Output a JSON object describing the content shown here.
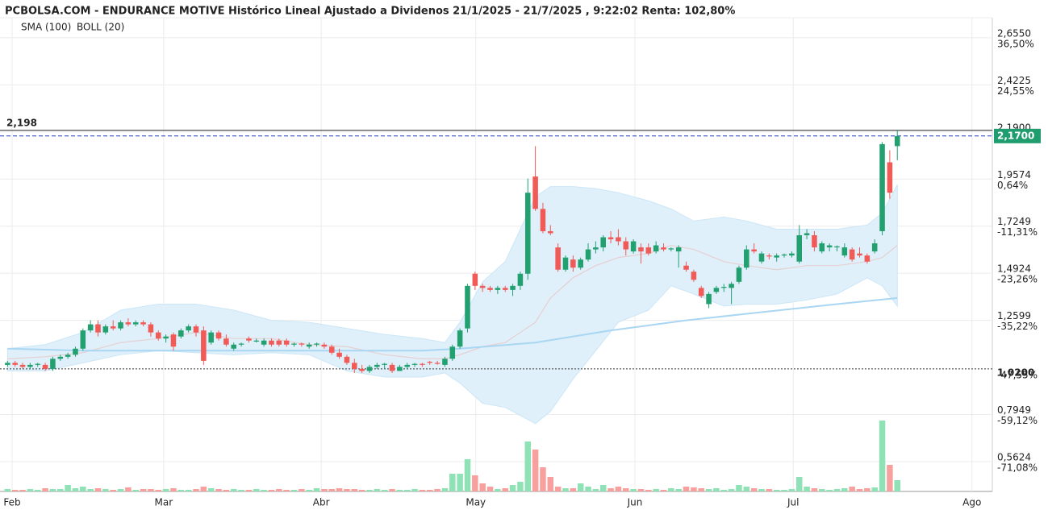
{
  "chart_data": {
    "type": "candlestick",
    "title": "PCBOLSA.COM - ENDURANCE MOTIVE Histórico Lineal Ajustado a Dividenos 21/1/2025 - 21/7/2025 , 9:22:02 Renta: 102,80%",
    "up_color": "#22a06f",
    "down_color": "#f05a57",
    "volume_up_color": "#8ee2b5",
    "volume_down_color": "#f7a09d",
    "candles": [
      [
        1.04,
        1.06,
        1.03,
        1.05
      ],
      [
        1.05,
        1.06,
        1.03,
        1.04
      ],
      [
        1.04,
        1.05,
        1.02,
        1.03
      ],
      [
        1.03,
        1.05,
        1.02,
        1.04
      ],
      [
        1.04,
        1.05,
        1.03,
        1.045
      ],
      [
        1.04,
        1.05,
        1.01,
        1.02
      ],
      [
        1.02,
        1.08,
        1.01,
        1.07
      ],
      [
        1.07,
        1.09,
        1.06,
        1.08
      ],
      [
        1.08,
        1.1,
        1.07,
        1.09
      ],
      [
        1.09,
        1.13,
        1.08,
        1.12
      ],
      [
        1.12,
        1.22,
        1.11,
        1.21
      ],
      [
        1.21,
        1.26,
        1.2,
        1.24
      ],
      [
        1.24,
        1.26,
        1.18,
        1.2
      ],
      [
        1.2,
        1.24,
        1.19,
        1.23
      ],
      [
        1.23,
        1.26,
        1.21,
        1.22
      ],
      [
        1.22,
        1.26,
        1.21,
        1.25
      ],
      [
        1.25,
        1.27,
        1.23,
        1.24
      ],
      [
        1.24,
        1.26,
        1.23,
        1.25
      ],
      [
        1.25,
        1.26,
        1.23,
        1.24
      ],
      [
        1.24,
        1.25,
        1.18,
        1.2
      ],
      [
        1.2,
        1.21,
        1.16,
        1.17
      ],
      [
        1.17,
        1.19,
        1.15,
        1.18
      ],
      [
        1.19,
        1.2,
        1.11,
        1.13
      ],
      [
        1.18,
        1.22,
        1.17,
        1.21
      ],
      [
        1.21,
        1.24,
        1.2,
        1.23
      ],
      [
        1.23,
        1.24,
        1.18,
        1.2
      ],
      [
        1.21,
        1.23,
        1.04,
        1.06
      ],
      [
        1.15,
        1.21,
        1.14,
        1.2
      ],
      [
        1.2,
        1.21,
        1.16,
        1.17
      ],
      [
        1.17,
        1.19,
        1.13,
        1.14
      ],
      [
        1.12,
        1.15,
        1.11,
        1.14
      ],
      [
        1.14,
        1.15,
        1.13,
        1.145
      ],
      [
        1.17,
        1.18,
        1.15,
        1.16
      ],
      [
        1.155,
        1.17,
        1.15,
        1.16
      ],
      [
        1.14,
        1.17,
        1.13,
        1.16
      ],
      [
        1.16,
        1.17,
        1.13,
        1.14
      ],
      [
        1.16,
        1.17,
        1.13,
        1.14
      ],
      [
        1.16,
        1.17,
        1.13,
        1.14
      ],
      [
        1.14,
        1.15,
        1.13,
        1.145
      ],
      [
        1.145,
        1.15,
        1.13,
        1.14
      ],
      [
        1.13,
        1.15,
        1.12,
        1.14
      ],
      [
        1.14,
        1.15,
        1.13,
        1.145
      ],
      [
        1.14,
        1.15,
        1.12,
        1.13
      ],
      [
        1.13,
        1.14,
        1.09,
        1.1
      ],
      [
        1.1,
        1.12,
        1.07,
        1.08
      ],
      [
        1.08,
        1.09,
        1.04,
        1.05
      ],
      [
        1.05,
        1.07,
        1.0,
        1.02
      ],
      [
        1.02,
        1.04,
        1.0,
        1.01
      ],
      [
        1.01,
        1.04,
        1.0,
        1.03
      ],
      [
        1.03,
        1.05,
        1.02,
        1.04
      ],
      [
        1.04,
        1.05,
        1.02,
        1.045
      ],
      [
        1.04,
        1.05,
        1.0,
        1.01
      ],
      [
        1.01,
        1.04,
        1.01,
        1.03
      ],
      [
        1.03,
        1.05,
        1.02,
        1.04
      ],
      [
        1.04,
        1.05,
        1.03,
        1.045
      ],
      [
        1.045,
        1.05,
        1.03,
        1.04
      ],
      [
        1.055,
        1.06,
        1.04,
        1.05
      ],
      [
        1.05,
        1.06,
        1.04,
        1.045
      ],
      [
        1.04,
        1.08,
        1.03,
        1.07
      ],
      [
        1.07,
        1.14,
        1.06,
        1.13
      ],
      [
        1.13,
        1.22,
        1.12,
        1.21
      ],
      [
        1.22,
        1.44,
        1.2,
        1.43
      ],
      [
        1.49,
        1.5,
        1.41,
        1.43
      ],
      [
        1.43,
        1.44,
        1.4,
        1.42
      ],
      [
        1.42,
        1.43,
        1.4,
        1.41
      ],
      [
        1.41,
        1.43,
        1.39,
        1.42
      ],
      [
        1.42,
        1.43,
        1.4,
        1.41
      ],
      [
        1.41,
        1.44,
        1.38,
        1.43
      ],
      [
        1.43,
        1.5,
        1.41,
        1.49
      ],
      [
        1.49,
        1.96,
        1.46,
        1.89
      ],
      [
        1.97,
        2.12,
        1.8,
        1.81
      ],
      [
        1.81,
        1.84,
        1.69,
        1.7
      ],
      [
        1.7,
        1.73,
        1.68,
        1.69
      ],
      [
        1.62,
        1.64,
        1.5,
        1.51
      ],
      [
        1.51,
        1.58,
        1.5,
        1.57
      ],
      [
        1.56,
        1.58,
        1.5,
        1.52
      ],
      [
        1.52,
        1.57,
        1.51,
        1.56
      ],
      [
        1.56,
        1.64,
        1.55,
        1.61
      ],
      [
        1.61,
        1.65,
        1.59,
        1.62
      ],
      [
        1.62,
        1.68,
        1.6,
        1.67
      ],
      [
        1.67,
        1.7,
        1.64,
        1.66
      ],
      [
        1.67,
        1.71,
        1.63,
        1.65
      ],
      [
        1.65,
        1.67,
        1.58,
        1.61
      ],
      [
        1.6,
        1.66,
        1.59,
        1.65
      ],
      [
        1.62,
        1.64,
        1.54,
        1.6
      ],
      [
        1.62,
        1.64,
        1.58,
        1.59
      ],
      [
        1.6,
        1.65,
        1.59,
        1.63
      ],
      [
        1.62,
        1.64,
        1.6,
        1.61
      ],
      [
        1.61,
        1.62,
        1.6,
        1.615
      ],
      [
        1.6,
        1.63,
        1.52,
        1.62
      ],
      [
        1.53,
        1.55,
        1.5,
        1.51
      ],
      [
        1.5,
        1.51,
        1.45,
        1.46
      ],
      [
        1.42,
        1.43,
        1.37,
        1.38
      ],
      [
        1.34,
        1.4,
        1.32,
        1.39
      ],
      [
        1.4,
        1.43,
        1.39,
        1.42
      ],
      [
        1.42,
        1.44,
        1.4,
        1.425
      ],
      [
        1.42,
        1.45,
        1.34,
        1.44
      ],
      [
        1.45,
        1.53,
        1.44,
        1.52
      ],
      [
        1.52,
        1.63,
        1.51,
        1.61
      ],
      [
        1.61,
        1.64,
        1.59,
        1.6
      ],
      [
        1.55,
        1.6,
        1.54,
        1.59
      ],
      [
        1.58,
        1.59,
        1.56,
        1.575
      ],
      [
        1.57,
        1.59,
        1.55,
        1.58
      ],
      [
        1.58,
        1.59,
        1.57,
        1.585
      ],
      [
        1.58,
        1.6,
        1.57,
        1.59
      ],
      [
        1.55,
        1.73,
        1.54,
        1.68
      ],
      [
        1.68,
        1.71,
        1.66,
        1.69
      ],
      [
        1.68,
        1.7,
        1.6,
        1.62
      ],
      [
        1.6,
        1.65,
        1.59,
        1.64
      ],
      [
        1.62,
        1.64,
        1.6,
        1.63
      ],
      [
        1.62,
        1.63,
        1.6,
        1.625
      ],
      [
        1.58,
        1.64,
        1.57,
        1.62
      ],
      [
        1.61,
        1.62,
        1.55,
        1.56
      ],
      [
        1.59,
        1.62,
        1.57,
        1.58
      ],
      [
        1.58,
        1.59,
        1.54,
        1.55
      ],
      [
        1.6,
        1.66,
        1.59,
        1.64
      ],
      [
        1.7,
        2.14,
        1.68,
        2.13
      ],
      [
        2.04,
        2.1,
        1.86,
        1.89
      ],
      [
        2.12,
        2.2,
        2.05,
        2.17
      ]
    ],
    "volumes": [
      3,
      2,
      2,
      3,
      2,
      4,
      3,
      3,
      8,
      4,
      6,
      3,
      4,
      3,
      2,
      3,
      5,
      2,
      3,
      3,
      2,
      3,
      4,
      2,
      2,
      3,
      6,
      4,
      3,
      2,
      3,
      2,
      2,
      3,
      2,
      2,
      3,
      2,
      2,
      3,
      2,
      4,
      3,
      3,
      4,
      3,
      3,
      2,
      2,
      3,
      2,
      3,
      2,
      2,
      3,
      2,
      2,
      3,
      4,
      22,
      22,
      40,
      20,
      10,
      6,
      3,
      4,
      8,
      12,
      62,
      52,
      30,
      18,
      6,
      4,
      4,
      10,
      6,
      3,
      8,
      4,
      6,
      4,
      3,
      3,
      2,
      3,
      2,
      4,
      3,
      6,
      5,
      4,
      3,
      4,
      2,
      3,
      8,
      6,
      4,
      3,
      3,
      2,
      2,
      3,
      18,
      6,
      4,
      3,
      2,
      3,
      4,
      6,
      3,
      4,
      5,
      88,
      33,
      14
    ],
    "bollinger": {
      "name": "BOLL (20)",
      "color": "#d9d9d9",
      "band_color": "#dff0fb",
      "line_color": "#e6cfd0",
      "x": [
        0,
        5,
        10,
        15,
        20,
        25,
        30,
        35,
        40,
        45,
        50,
        55,
        58,
        60,
        63,
        66,
        70,
        72,
        75,
        78,
        81,
        85,
        88,
        91,
        95,
        98,
        102,
        106,
        110,
        114,
        116,
        118
      ],
      "upper": [
        1.12,
        1.14,
        1.2,
        1.31,
        1.34,
        1.34,
        1.31,
        1.26,
        1.25,
        1.22,
        1.19,
        1.17,
        1.15,
        1.25,
        1.45,
        1.55,
        1.87,
        1.92,
        1.92,
        1.91,
        1.89,
        1.85,
        1.81,
        1.75,
        1.77,
        1.75,
        1.71,
        1.71,
        1.71,
        1.73,
        1.79,
        1.93
      ],
      "middle": [
        1.07,
        1.08,
        1.1,
        1.15,
        1.17,
        1.2,
        1.17,
        1.17,
        1.14,
        1.13,
        1.09,
        1.07,
        1.07,
        1.09,
        1.13,
        1.15,
        1.25,
        1.37,
        1.47,
        1.53,
        1.57,
        1.59,
        1.63,
        1.61,
        1.55,
        1.53,
        1.51,
        1.53,
        1.53,
        1.55,
        1.57,
        1.63
      ],
      "lower": [
        1.01,
        1.01,
        1.05,
        1.09,
        1.11,
        1.1,
        1.09,
        1.1,
        1.09,
        1.01,
        0.98,
        0.98,
        1.0,
        0.95,
        0.85,
        0.83,
        0.75,
        0.81,
        0.97,
        1.11,
        1.25,
        1.31,
        1.43,
        1.39,
        1.33,
        1.34,
        1.34,
        1.36,
        1.39,
        1.47,
        1.43,
        1.33
      ]
    },
    "sma": {
      "name": "SMA (100)",
      "color": "#a9d6f2",
      "x": [
        0,
        10,
        20,
        30,
        40,
        55,
        60,
        70,
        80,
        90,
        100,
        110,
        118
      ],
      "values": [
        1.12,
        1.11,
        1.11,
        1.11,
        1.11,
        1.11,
        1.12,
        1.15,
        1.21,
        1.26,
        1.3,
        1.34,
        1.37
      ]
    },
    "xlim": [
      -1,
      130.6
    ],
    "xticks": [
      {
        "value": 0.6,
        "label": "Feb"
      },
      {
        "value": 20.7,
        "label": "Mar"
      },
      {
        "value": 41.6,
        "label": "Abr"
      },
      {
        "value": 62.1,
        "label": "May"
      },
      {
        "value": 83.2,
        "label": "Jun"
      },
      {
        "value": 104.2,
        "label": "Jul"
      },
      {
        "value": 127.9,
        "label": "Ago"
      }
    ],
    "ylim": [
      0.415,
      2.754
    ],
    "yticks": [
      {
        "value": 2.655,
        "label": "2,6550"
      },
      {
        "value": 2.4225,
        "label": "2,4225"
      },
      {
        "value": 2.19,
        "label": "2,1900"
      },
      {
        "value": 1.9574,
        "label": "1,9574"
      },
      {
        "value": 1.7249,
        "label": "1,7249"
      },
      {
        "value": 1.4924,
        "label": "1,4924"
      },
      {
        "value": 1.2599,
        "label": "1,2599"
      },
      {
        "value": 0.7949,
        "label": "0,7949"
      },
      {
        "value": 0.5624,
        "label": "0,5624"
      }
    ],
    "ytick_pct": [
      {
        "value": 2.655,
        "label": "36,50%"
      },
      {
        "value": 2.4225,
        "label": "24,55%"
      },
      {
        "value": 1.9574,
        "label": "0,64%"
      },
      {
        "value": 1.7249,
        "label": "-11,31%"
      },
      {
        "value": 1.4924,
        "label": "-23,26%"
      },
      {
        "value": 1.2599,
        "label": "-35,22%"
      },
      {
        "value": 1.02,
        "label": "-47,55%"
      },
      {
        "value": 0.7949,
        "label": "-59,12%"
      },
      {
        "value": 0.5624,
        "label": "-71,08%"
      }
    ],
    "max_line": {
      "value": 2.198,
      "label": "2,198"
    },
    "last_price": {
      "value": 2.17,
      "label": "2,1700",
      "color": "#1f9d6e"
    },
    "base_line": {
      "value": 1.02,
      "label": "1,0200"
    },
    "pct_up_color": "#1f9d6e",
    "pct_down_color": "#f0484a",
    "grid": true
  }
}
